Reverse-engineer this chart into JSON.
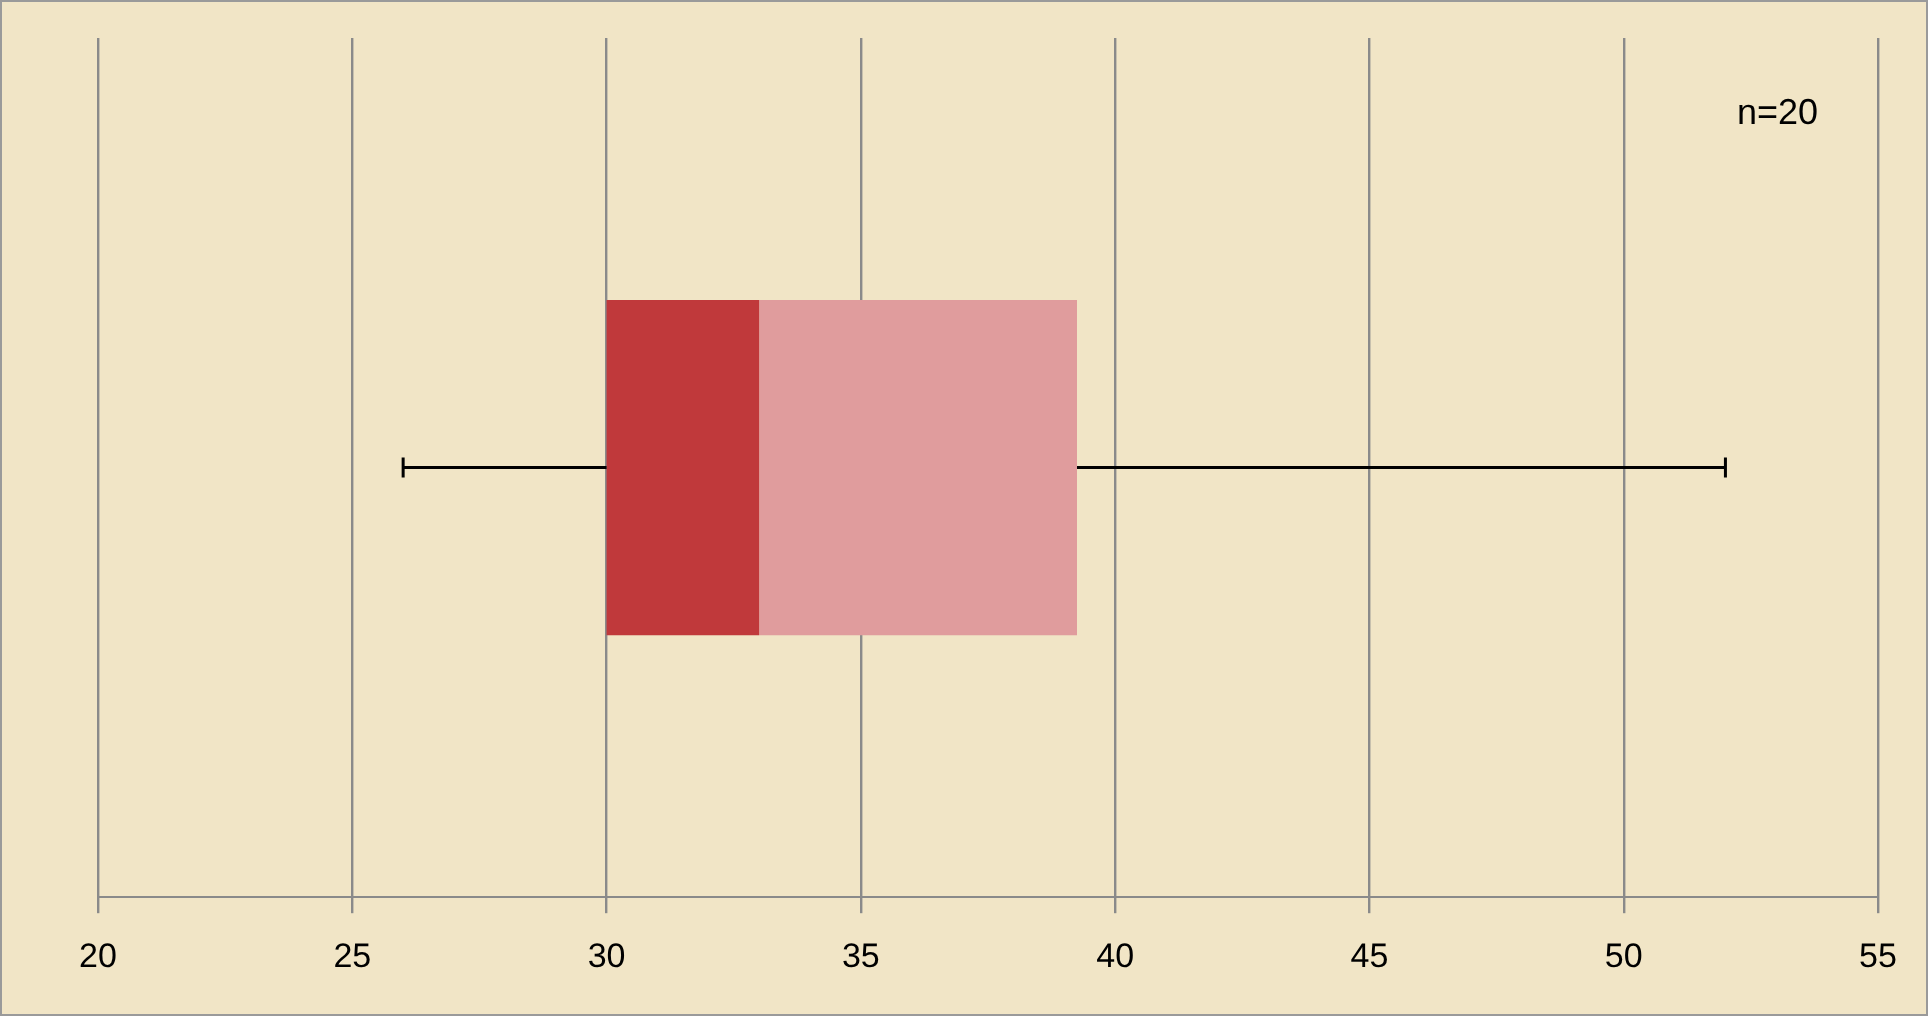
{
  "chart_data": {
    "type": "box",
    "orientation": "horizontal",
    "categories": [
      null
    ],
    "boxes": [
      {
        "low": 26,
        "q1": 30,
        "median": 33,
        "q3": 39.25,
        "high": 52
      }
    ],
    "color": "#c0393b",
    "xlim": [
      20,
      55
    ],
    "xticks": [
      20,
      25,
      30,
      35,
      40,
      45,
      50,
      55
    ],
    "grid": "x",
    "tick_labels": "x",
    "annotations": [
      "n=20"
    ]
  }
}
